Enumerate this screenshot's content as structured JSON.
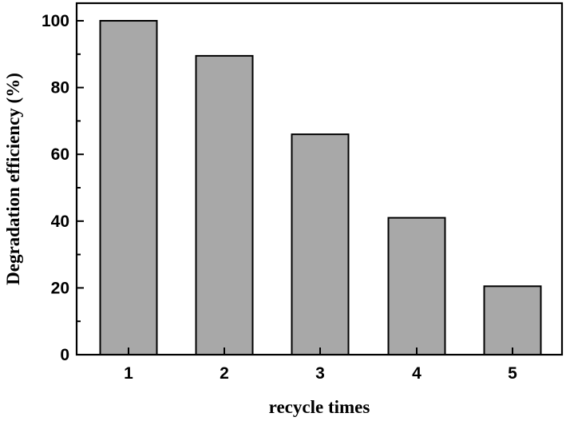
{
  "chart_data": {
    "type": "bar",
    "title": "",
    "xlabel": "recycle times",
    "ylabel": "Degradation efficiency (%)",
    "categories": [
      "1",
      "2",
      "3",
      "4",
      "5"
    ],
    "values": [
      100,
      89.5,
      66,
      41,
      20.5
    ],
    "ylim": [
      0,
      100
    ],
    "yticks": [
      "0",
      "20",
      "40",
      "60",
      "80",
      "100"
    ],
    "ytick_values": [
      0,
      20,
      40,
      60,
      80,
      100
    ],
    "grid": false,
    "bar_color": "#a8a8a8"
  }
}
